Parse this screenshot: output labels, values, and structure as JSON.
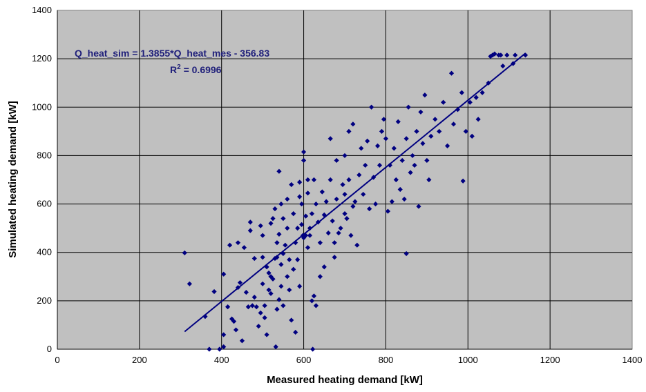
{
  "chart_data": {
    "type": "scatter",
    "xlabel": "Measured heating demand [kW]",
    "ylabel": "Simulated heating demand [kW]",
    "xlim": [
      0,
      1400
    ],
    "ylim": [
      0,
      1400
    ],
    "x_ticks": [
      0,
      200,
      400,
      600,
      800,
      1000,
      1200,
      1400
    ],
    "y_ticks": [
      0,
      200,
      400,
      600,
      800,
      1000,
      1200,
      1400
    ],
    "grid": true,
    "legend": "none",
    "colors": {
      "plot_background": "#c0c0c0",
      "marker": "#000080",
      "trendline": "#000080",
      "annotation": "#1f1f7a"
    },
    "annotations": {
      "equation": "Q_heat_sim = 1.3855*Q_heat_mes - 356.83",
      "r_squared_prefix": "R",
      "r_squared_exponent": "2",
      "r_squared_value": " = 0.6996"
    },
    "trendline": {
      "slope": 1.3855,
      "intercept": -356.83,
      "x_start": 310,
      "x_end": 1140
    },
    "series": [
      {
        "points": [
          [
            310,
            398
          ],
          [
            322,
            270
          ],
          [
            360,
            135
          ],
          [
            370,
            0
          ],
          [
            382,
            238
          ],
          [
            395,
            0
          ],
          [
            405,
            60
          ],
          [
            405,
            310
          ],
          [
            405,
            10
          ],
          [
            415,
            175
          ],
          [
            420,
            430
          ],
          [
            425,
            125
          ],
          [
            430,
            115
          ],
          [
            435,
            80
          ],
          [
            440,
            255
          ],
          [
            440,
            440
          ],
          [
            445,
            275
          ],
          [
            450,
            35
          ],
          [
            455,
            420
          ],
          [
            460,
            235
          ],
          [
            465,
            175
          ],
          [
            470,
            490
          ],
          [
            470,
            525
          ],
          [
            475,
            180
          ],
          [
            480,
            215
          ],
          [
            480,
            375
          ],
          [
            485,
            175
          ],
          [
            490,
            95
          ],
          [
            495,
            510
          ],
          [
            495,
            150
          ],
          [
            500,
            380
          ],
          [
            500,
            270
          ],
          [
            500,
            470
          ],
          [
            505,
            180
          ],
          [
            505,
            130
          ],
          [
            510,
            60
          ],
          [
            510,
            340
          ],
          [
            515,
            315
          ],
          [
            515,
            245
          ],
          [
            520,
            300
          ],
          [
            520,
            230
          ],
          [
            520,
            520
          ],
          [
            525,
            540
          ],
          [
            525,
            290
          ],
          [
            530,
            375
          ],
          [
            530,
            580
          ],
          [
            532,
            10
          ],
          [
            535,
            440
          ],
          [
            535,
            165
          ],
          [
            535,
            380
          ],
          [
            540,
            735
          ],
          [
            540,
            475
          ],
          [
            540,
            205
          ],
          [
            545,
            600
          ],
          [
            545,
            350
          ],
          [
            545,
            260
          ],
          [
            550,
            540
          ],
          [
            550,
            395
          ],
          [
            550,
            180
          ],
          [
            555,
            430
          ],
          [
            560,
            620
          ],
          [
            560,
            500
          ],
          [
            560,
            300
          ],
          [
            565,
            370
          ],
          [
            565,
            245
          ],
          [
            570,
            680
          ],
          [
            570,
            120
          ],
          [
            575,
            330
          ],
          [
            575,
            560
          ],
          [
            580,
            440
          ],
          [
            580,
            70
          ],
          [
            585,
            500
          ],
          [
            585,
            370
          ],
          [
            590,
            690
          ],
          [
            590,
            630
          ],
          [
            590,
            260
          ],
          [
            595,
            600
          ],
          [
            595,
            515
          ],
          [
            598,
            470
          ],
          [
            600,
            460
          ],
          [
            600,
            780
          ],
          [
            600,
            815
          ],
          [
            605,
            550
          ],
          [
            605,
            470
          ],
          [
            610,
            700
          ],
          [
            610,
            645
          ],
          [
            610,
            420
          ],
          [
            615,
            500
          ],
          [
            615,
            470
          ],
          [
            620,
            560
          ],
          [
            620,
            200
          ],
          [
            622,
            0
          ],
          [
            625,
            700
          ],
          [
            625,
            220
          ],
          [
            630,
            600
          ],
          [
            630,
            180
          ],
          [
            635,
            525
          ],
          [
            640,
            440
          ],
          [
            640,
            300
          ],
          [
            645,
            650
          ],
          [
            650,
            555
          ],
          [
            650,
            340
          ],
          [
            655,
            610
          ],
          [
            660,
            480
          ],
          [
            665,
            700
          ],
          [
            665,
            870
          ],
          [
            670,
            530
          ],
          [
            675,
            440
          ],
          [
            675,
            380
          ],
          [
            680,
            620
          ],
          [
            680,
            780
          ],
          [
            685,
            480
          ],
          [
            690,
            500
          ],
          [
            695,
            680
          ],
          [
            700,
            640
          ],
          [
            700,
            560
          ],
          [
            700,
            800
          ],
          [
            705,
            540
          ],
          [
            710,
            700
          ],
          [
            710,
            900
          ],
          [
            715,
            470
          ],
          [
            720,
            590
          ],
          [
            720,
            930
          ],
          [
            725,
            610
          ],
          [
            730,
            430
          ],
          [
            735,
            720
          ],
          [
            740,
            830
          ],
          [
            745,
            640
          ],
          [
            750,
            760
          ],
          [
            755,
            860
          ],
          [
            760,
            580
          ],
          [
            765,
            1000
          ],
          [
            770,
            710
          ],
          [
            775,
            600
          ],
          [
            780,
            840
          ],
          [
            785,
            760
          ],
          [
            790,
            900
          ],
          [
            795,
            950
          ],
          [
            800,
            870
          ],
          [
            805,
            570
          ],
          [
            810,
            760
          ],
          [
            815,
            610
          ],
          [
            820,
            830
          ],
          [
            825,
            700
          ],
          [
            830,
            940
          ],
          [
            835,
            660
          ],
          [
            840,
            780
          ],
          [
            845,
            620
          ],
          [
            850,
            870
          ],
          [
            850,
            395
          ],
          [
            855,
            1000
          ],
          [
            860,
            730
          ],
          [
            865,
            800
          ],
          [
            870,
            760
          ],
          [
            875,
            900
          ],
          [
            880,
            590
          ],
          [
            885,
            980
          ],
          [
            890,
            850
          ],
          [
            895,
            1050
          ],
          [
            900,
            780
          ],
          [
            905,
            700
          ],
          [
            910,
            880
          ],
          [
            920,
            950
          ],
          [
            930,
            900
          ],
          [
            940,
            1020
          ],
          [
            950,
            840
          ],
          [
            960,
            1140
          ],
          [
            965,
            930
          ],
          [
            975,
            990
          ],
          [
            985,
            1060
          ],
          [
            988,
            695
          ],
          [
            995,
            900
          ],
          [
            1005,
            1020
          ],
          [
            1010,
            880
          ],
          [
            1020,
            1040
          ],
          [
            1025,
            950
          ],
          [
            1035,
            1060
          ],
          [
            1050,
            1100
          ],
          [
            1055,
            1210
          ],
          [
            1060,
            1215
          ],
          [
            1065,
            1220
          ],
          [
            1075,
            1215
          ],
          [
            1080,
            1215
          ],
          [
            1085,
            1170
          ],
          [
            1095,
            1215
          ],
          [
            1110,
            1180
          ],
          [
            1115,
            1215
          ],
          [
            1140,
            1215
          ]
        ]
      }
    ]
  }
}
